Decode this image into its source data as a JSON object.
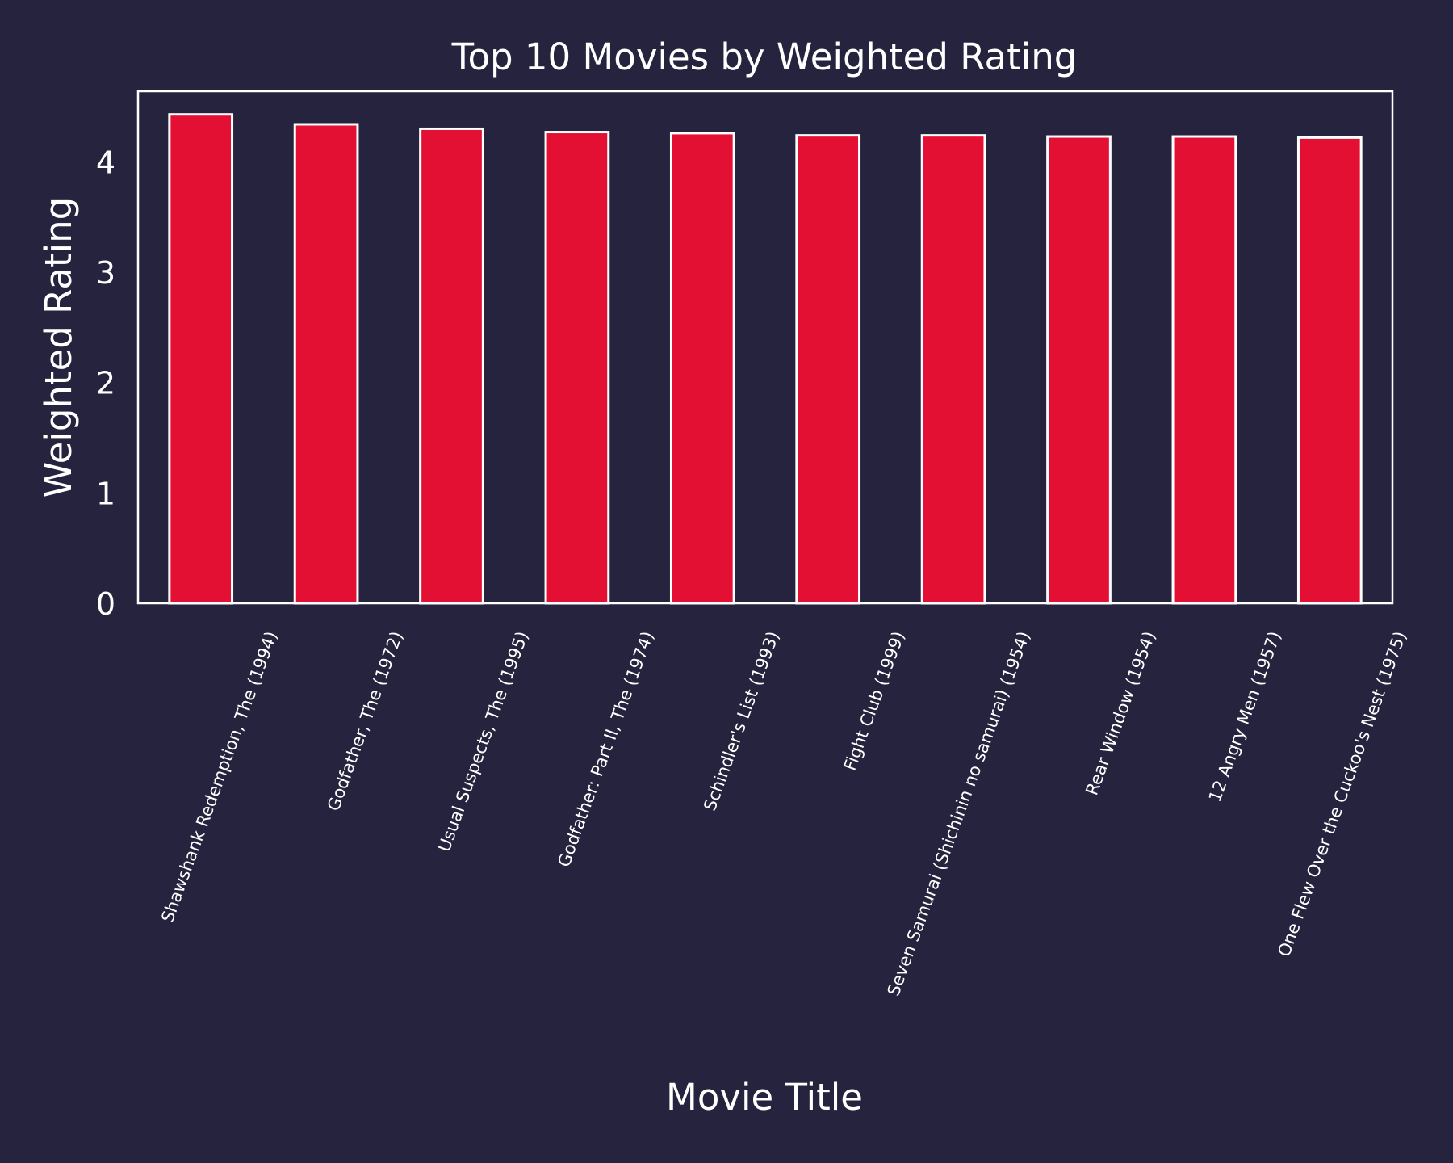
{
  "colors": {
    "background": "#25233d",
    "bar_fill": "#e31034",
    "bar_edge": "#ffffff",
    "axis": "#ffffff",
    "text": "#ffffff"
  },
  "chart_data": {
    "type": "bar",
    "title": "Top 10 Movies by Weighted Rating",
    "xlabel": "Movie Title",
    "ylabel": "Weighted Rating",
    "categories": [
      "Shawshank Redemption, The (1994)",
      "Godfather, The (1972)",
      "Usual Suspects, The (1995)",
      "Godfather: Part II, The (1974)",
      "Schindler's List (1993)",
      "Fight Club (1999)",
      "Seven Samurai (Shichinin no samurai) (1954)",
      "Rear Window (1954)",
      "12 Angry Men (1957)",
      "One Flew Over the Cuckoo's Nest (1975)"
    ],
    "values": [
      4.43,
      4.34,
      4.3,
      4.27,
      4.26,
      4.24,
      4.24,
      4.23,
      4.23,
      4.22
    ],
    "ylim": [
      0,
      4.64
    ],
    "yticks": [
      0,
      1,
      2,
      3,
      4
    ],
    "ytick_labels": [
      "0",
      "1",
      "2",
      "3",
      "4"
    ],
    "grid": false,
    "legend": "none"
  }
}
